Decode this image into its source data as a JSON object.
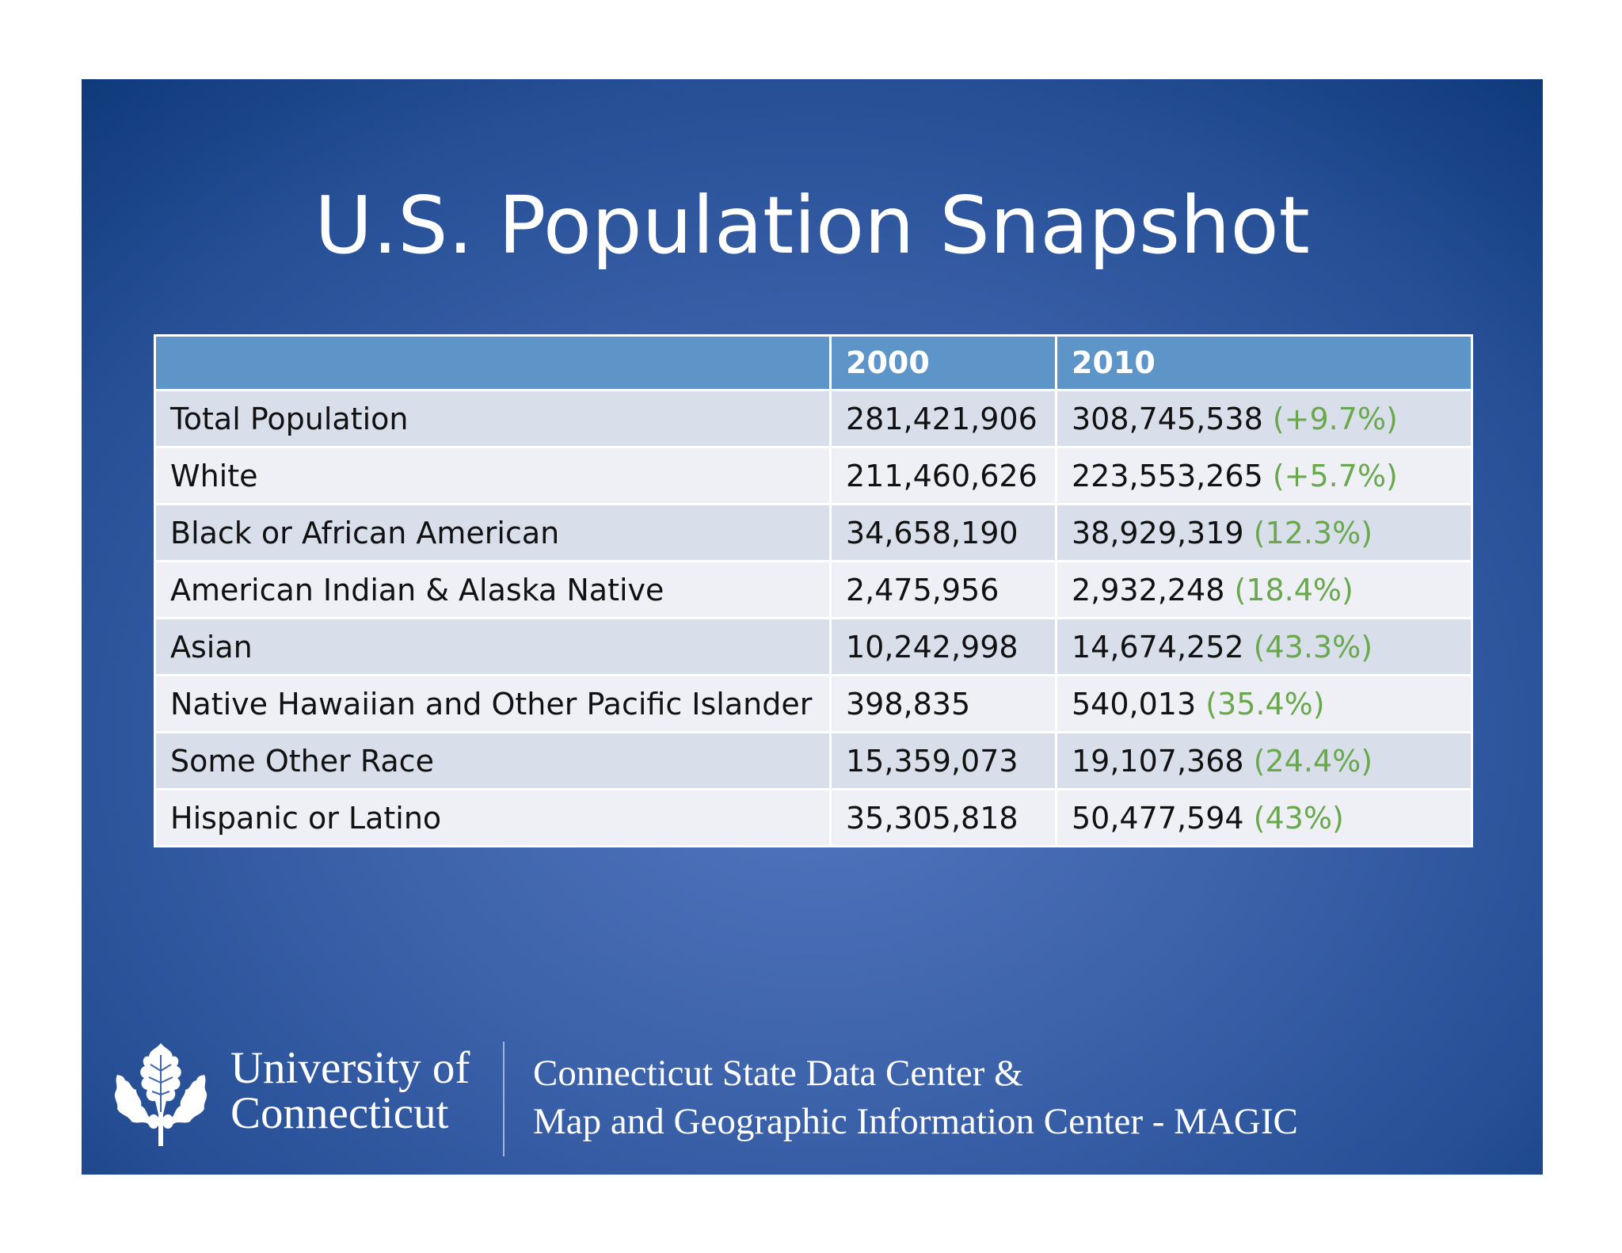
{
  "slide": {
    "title": "U.S. Population Snapshot"
  },
  "table": {
    "headers": [
      "",
      "2000",
      "2010"
    ],
    "rows": [
      {
        "label": "Total Population",
        "y2000": "281,421,906",
        "y2010": "308,745,538",
        "change": "(+9.7%)"
      },
      {
        "label": "White",
        "y2000": "211,460,626",
        "y2010": "223,553,265",
        "change": "(+5.7%)"
      },
      {
        "label": "Black or African American",
        "y2000": "34,658,190",
        "y2010": "38,929,319",
        "change": "(12.3%)"
      },
      {
        "label": "American Indian & Alaska Native",
        "y2000": "2,475,956",
        "y2010": "2,932,248",
        "change": "(18.4%)"
      },
      {
        "label": "Asian",
        "y2000": "10,242,998",
        "y2010": "14,674,252",
        "change": "(43.3%)"
      },
      {
        "label": "Native Hawaiian and Other Pacific Islander",
        "y2000": "398,835",
        "y2010": "540,013",
        "change": "(35.4%)"
      },
      {
        "label": "Some Other Race",
        "y2000": "15,359,073",
        "y2010": "19,107,368",
        "change": "(24.4%)"
      },
      {
        "label": "Hispanic or Latino",
        "y2000": "35,305,818",
        "y2010": "50,477,594",
        "change": "(43%)"
      }
    ]
  },
  "footer": {
    "logo_icon": "oak-leaf-icon",
    "university_line1": "University of",
    "university_line2": "Connecticut",
    "center_line1": "Connecticut State Data Center &",
    "center_line2": "Map and Geographic Information Center - MAGIC"
  },
  "colors": {
    "header_fill": "#5e95c9",
    "row_odd": "#d9dfea",
    "row_even": "#eef0f5",
    "change_text": "#6aa84f",
    "background": "#3d63ab"
  }
}
